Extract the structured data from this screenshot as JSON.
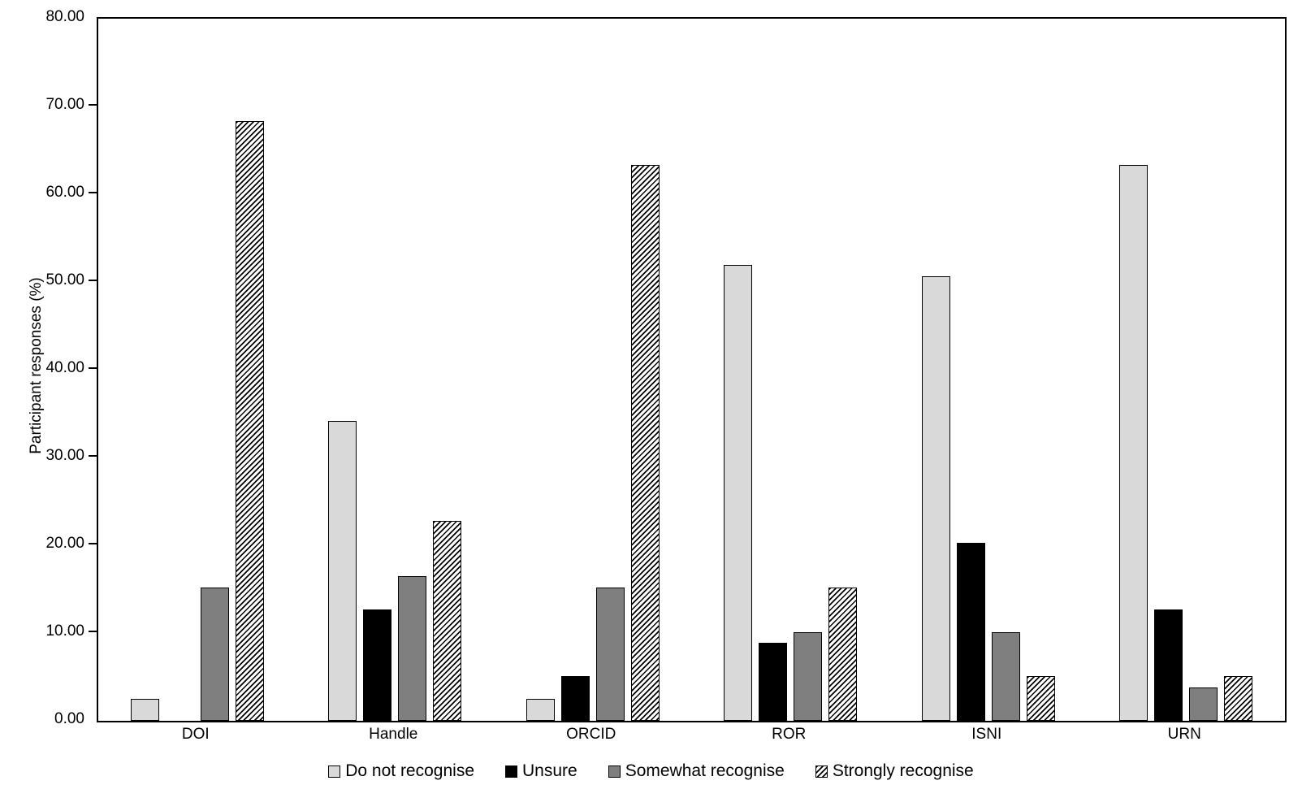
{
  "chart_data": {
    "type": "bar",
    "title": "",
    "xlabel": "",
    "ylabel": "Participant responses (%)",
    "ylim": [
      0,
      80
    ],
    "ytick_step": 10,
    "ytick_labels": [
      "0.00",
      "10.00",
      "20.00",
      "30.00",
      "40.00",
      "50.00",
      "60.00",
      "70.00",
      "80.00"
    ],
    "grid": false,
    "legend_position": "bottom",
    "categories": [
      "DOI",
      "Handle",
      "ORCID",
      "ROR",
      "ISNI",
      "URN"
    ],
    "series": [
      {
        "name": "Do not recognise",
        "style": "light-gray",
        "color": "#d9d9d9",
        "values": [
          2.53,
          34.18,
          2.53,
          51.9,
          50.63,
          63.29
        ]
      },
      {
        "name": "Unsure",
        "style": "black",
        "color": "#000000",
        "values": [
          0.0,
          12.66,
          5.06,
          8.86,
          20.25,
          12.66
        ]
      },
      {
        "name": "Somewhat recognise",
        "style": "dark-gray",
        "color": "#7f7f7f",
        "values": [
          15.19,
          16.46,
          15.19,
          10.13,
          10.13,
          3.8
        ]
      },
      {
        "name": "Strongly recognise",
        "style": "hatched",
        "color": "#000000",
        "hatch": "diagonal-forward",
        "values": [
          68.35,
          22.78,
          63.29,
          15.19,
          5.06,
          5.06
        ]
      }
    ]
  }
}
